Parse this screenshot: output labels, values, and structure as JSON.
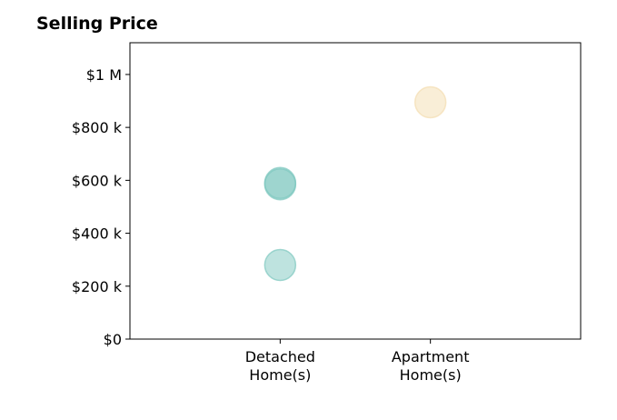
{
  "chart_data": {
    "type": "scatter",
    "title": "Selling Price",
    "xlabel": "",
    "ylabel": "",
    "categories": [
      "Detached\nHome(s)",
      "Apartment\nHome(s)"
    ],
    "ylim": [
      0,
      1120000
    ],
    "xlim": [
      -1,
      2
    ],
    "y_ticks": [
      {
        "value": 0,
        "label": "$0"
      },
      {
        "value": 200000,
        "label": "$200 k"
      },
      {
        "value": 400000,
        "label": "$400 k"
      },
      {
        "value": 600000,
        "label": "$600 k"
      },
      {
        "value": 800000,
        "label": "$800 k"
      },
      {
        "value": 1000000,
        "label": "$1 M"
      }
    ],
    "grid": false,
    "points": [
      {
        "category": "Detached\nHome(s)",
        "y": 590000,
        "color": "#7ec8bf"
      },
      {
        "category": "Detached\nHome(s)",
        "y": 585000,
        "color": "#7ec8bf"
      },
      {
        "category": "Detached\nHome(s)",
        "y": 280000,
        "color": "#7ec8bf"
      },
      {
        "category": "Apartment\nHome(s)",
        "y": 895000,
        "color": "#f3ddb0"
      }
    ]
  }
}
